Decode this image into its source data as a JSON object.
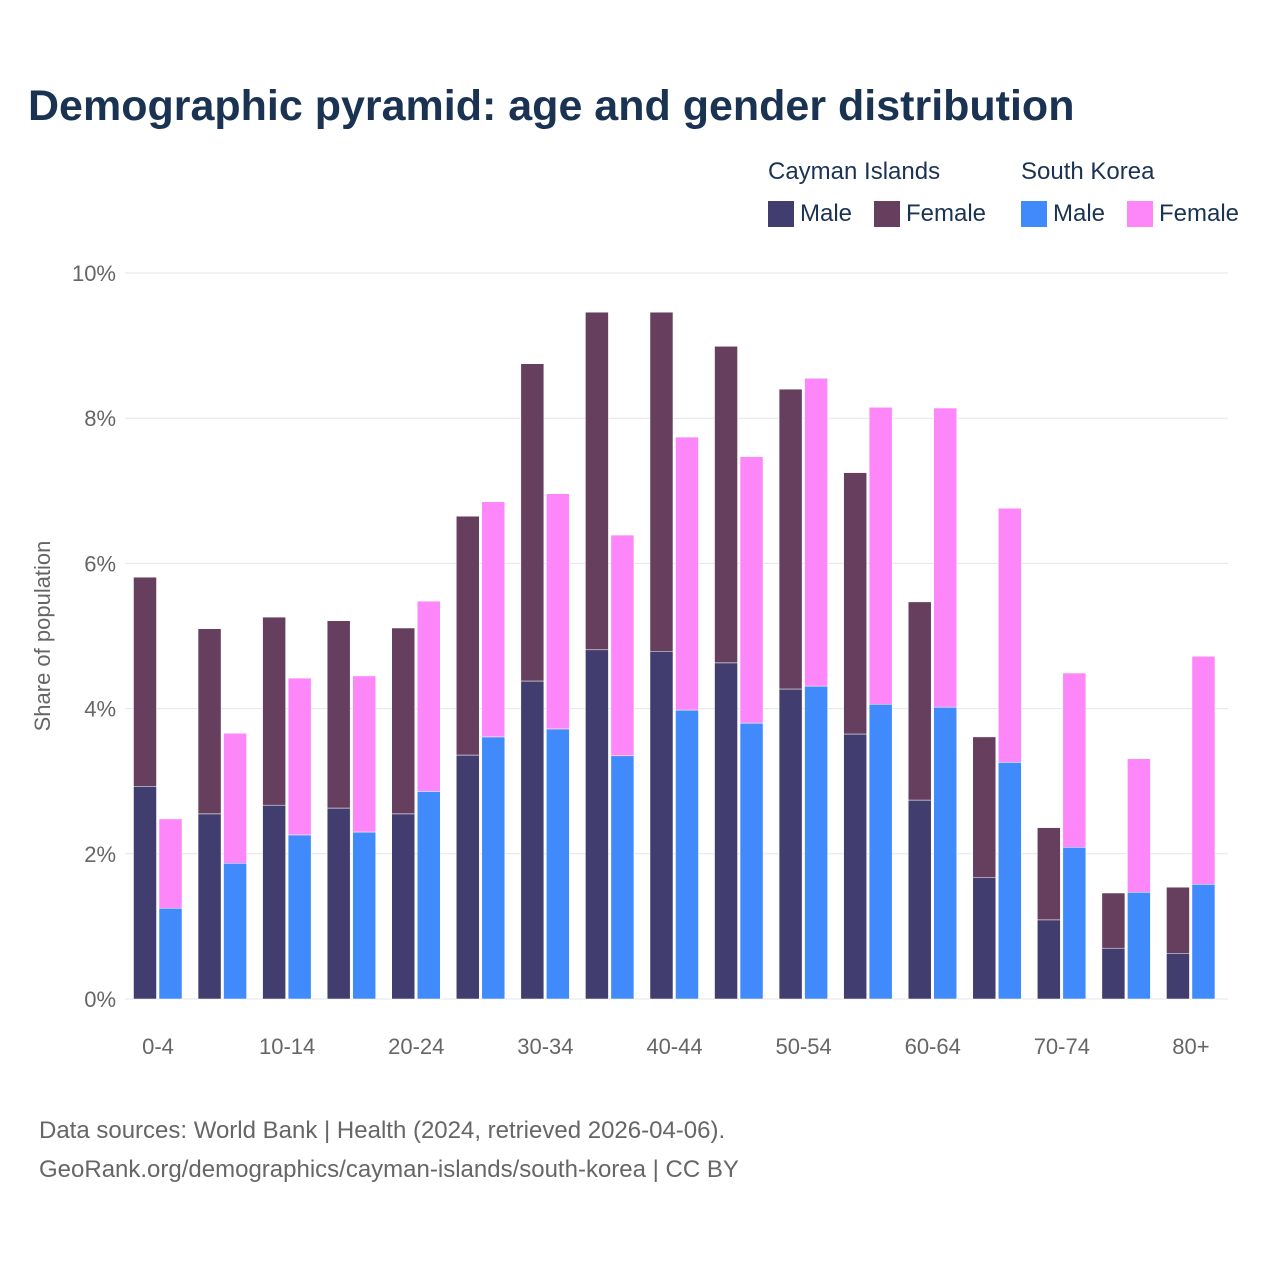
{
  "chart_data": {
    "type": "bar",
    "title": "Demographic pyramid: age and gender distribution",
    "ylabel": "Share of population",
    "ylim": [
      0,
      10
    ],
    "yticks": [
      "0%",
      "2%",
      "4%",
      "6%",
      "8%",
      "10%"
    ],
    "categories": [
      "0-4",
      "5-9",
      "10-14",
      "15-19",
      "20-24",
      "25-29",
      "30-34",
      "35-39",
      "40-44",
      "45-49",
      "50-54",
      "55-59",
      "60-64",
      "65-69",
      "70-74",
      "75-79",
      "80+"
    ],
    "shown_labels": [
      "0-4",
      "10-14",
      "20-24",
      "30-34",
      "40-44",
      "50-54",
      "60-64",
      "70-74",
      "80+"
    ],
    "legend": {
      "groups": [
        {
          "name": "Cayman Islands",
          "items": [
            "Male",
            "Female"
          ]
        },
        {
          "name": "South Korea",
          "items": [
            "Male",
            "Female"
          ]
        }
      ]
    },
    "series": [
      {
        "name": "Cayman Islands Male",
        "color": "#413d6e",
        "values": [
          2.93,
          2.55,
          2.67,
          2.63,
          2.55,
          3.36,
          4.38,
          4.81,
          4.79,
          4.63,
          4.27,
          3.65,
          2.74,
          1.67,
          1.09,
          0.7,
          0.63
        ]
      },
      {
        "name": "Cayman Islands Female",
        "color": "#663f5f",
        "values": [
          2.88,
          2.55,
          2.59,
          2.58,
          2.56,
          3.29,
          4.37,
          4.65,
          4.67,
          4.36,
          4.13,
          3.6,
          2.73,
          1.94,
          1.27,
          0.76,
          0.91
        ]
      },
      {
        "name": "South Korea Male",
        "color": "#418afc",
        "values": [
          1.25,
          1.87,
          2.26,
          2.3,
          2.86,
          3.61,
          3.72,
          3.35,
          3.98,
          3.8,
          4.31,
          4.06,
          4.02,
          3.26,
          2.09,
          1.47,
          1.58
        ]
      },
      {
        "name": "South Korea Female",
        "color": "#fd86f9",
        "values": [
          1.23,
          1.79,
          2.16,
          2.15,
          2.62,
          3.24,
          3.24,
          3.04,
          3.76,
          3.67,
          4.24,
          4.09,
          4.12,
          3.5,
          2.4,
          1.84,
          3.14
        ]
      }
    ]
  },
  "footer": {
    "line1": "Data sources: World Bank | Health (2024, retrieved 2026-04-06).",
    "line2": "GeoRank.org/demographics/cayman-islands/south-korea | CC BY"
  }
}
